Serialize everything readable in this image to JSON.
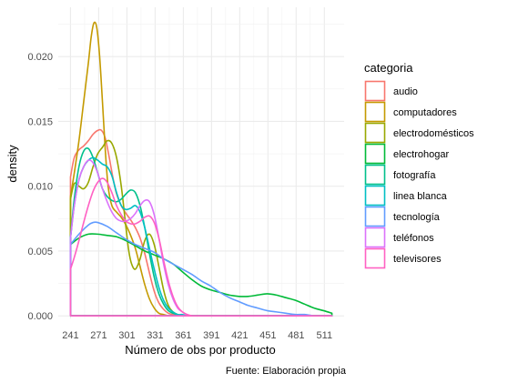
{
  "chart_data": {
    "type": "line",
    "subtype": "density",
    "xlabel": "Número de obs por producto",
    "ylabel": "density",
    "caption": "Fuente: Elaboración propia",
    "x_ticks": [
      241,
      271,
      301,
      331,
      361,
      391,
      421,
      451,
      481,
      511
    ],
    "y_ticks": [
      0.0,
      0.005,
      0.01,
      0.015,
      0.02
    ],
    "y_tick_labels": [
      "0.000",
      "0.005",
      "0.010",
      "0.015",
      "0.020"
    ],
    "xlim": [
      228,
      532
    ],
    "ylim": [
      -0.0002,
      0.0238
    ],
    "grid": true,
    "legend_title": "categoria",
    "legend_position": "right",
    "series": [
      {
        "name": "audio",
        "color": "#F8766D",
        "x": [
          241,
          245,
          250,
          255,
          260,
          265,
          270,
          274,
          278,
          282,
          286,
          290,
          295,
          300,
          305,
          310,
          315,
          320,
          325,
          330,
          335,
          340,
          345,
          350,
          355
        ],
        "y": [
          0.0107,
          0.0122,
          0.0128,
          0.0131,
          0.0135,
          0.014,
          0.0143,
          0.0143,
          0.0137,
          0.0123,
          0.0107,
          0.0094,
          0.0085,
          0.0079,
          0.0074,
          0.0068,
          0.006,
          0.0048,
          0.0033,
          0.0019,
          0.001,
          0.0005,
          0.0002,
          0.0001,
          0.0
        ]
      },
      {
        "name": "computadores",
        "color": "#C49A00",
        "x": [
          241,
          245,
          250,
          255,
          260,
          263,
          266,
          269,
          272,
          275,
          278,
          281,
          285,
          290,
          295,
          300,
          305,
          310,
          315,
          320,
          325,
          330,
          335,
          340,
          345
        ],
        "y": [
          0.0092,
          0.011,
          0.0135,
          0.0165,
          0.0195,
          0.0215,
          0.0226,
          0.0222,
          0.02,
          0.0165,
          0.0128,
          0.01,
          0.0085,
          0.008,
          0.0076,
          0.007,
          0.0062,
          0.0052,
          0.0038,
          0.0024,
          0.0013,
          0.0006,
          0.0002,
          0.0001,
          0.0
        ]
      },
      {
        "name": "electrodomésticos",
        "color": "#99A800",
        "x": [
          241,
          245,
          250,
          255,
          260,
          265,
          270,
          275,
          280,
          285,
          290,
          295,
          300,
          303,
          306,
          310,
          315,
          320,
          325,
          330,
          335,
          340,
          345,
          350,
          355,
          360
        ],
        "y": [
          0.009,
          0.0102,
          0.01,
          0.0098,
          0.0103,
          0.0115,
          0.0125,
          0.013,
          0.0135,
          0.0133,
          0.0122,
          0.01,
          0.0068,
          0.005,
          0.004,
          0.0036,
          0.0044,
          0.0058,
          0.0063,
          0.0055,
          0.0038,
          0.002,
          0.0008,
          0.0003,
          0.0001,
          0.0
        ]
      },
      {
        "name": "electrohogar",
        "color": "#00BA38",
        "x": [
          241,
          250,
          260,
          270,
          280,
          290,
          300,
          310,
          320,
          330,
          340,
          350,
          360,
          370,
          380,
          390,
          400,
          410,
          420,
          430,
          440,
          450,
          460,
          470,
          480,
          490,
          500,
          510,
          519
        ],
        "y": [
          0.0055,
          0.006,
          0.0063,
          0.0063,
          0.0062,
          0.0061,
          0.0058,
          0.0054,
          0.005,
          0.0047,
          0.0044,
          0.004,
          0.0034,
          0.0028,
          0.0023,
          0.002,
          0.0018,
          0.0016,
          0.0015,
          0.0015,
          0.0016,
          0.0017,
          0.0016,
          0.0014,
          0.0012,
          0.0009,
          0.0006,
          0.0004,
          0.0002
        ]
      },
      {
        "name": "fotografía",
        "color": "#00C08B",
        "x": [
          241,
          245,
          250,
          255,
          260,
          265,
          270,
          275,
          280,
          285,
          290,
          295,
          300,
          305,
          310,
          315,
          320,
          325,
          330,
          335,
          340,
          345,
          350,
          355,
          360
        ],
        "y": [
          0.006,
          0.009,
          0.0115,
          0.0127,
          0.0129,
          0.0122,
          0.011,
          0.0098,
          0.0092,
          0.0089,
          0.0088,
          0.009,
          0.0094,
          0.0097,
          0.0095,
          0.0085,
          0.0068,
          0.0048,
          0.003,
          0.0017,
          0.0009,
          0.0004,
          0.0002,
          0.0001,
          0.0
        ]
      },
      {
        "name": "linea blanca",
        "color": "#00BFC4",
        "x": [
          241,
          245,
          250,
          255,
          260,
          265,
          270,
          275,
          280,
          285,
          290,
          295,
          300,
          305,
          310,
          315,
          320,
          325,
          330,
          335,
          340,
          345,
          350,
          355,
          360,
          365
        ],
        "y": [
          0.006,
          0.0085,
          0.0105,
          0.0115,
          0.012,
          0.0122,
          0.012,
          0.0117,
          0.0115,
          0.0108,
          0.0095,
          0.0085,
          0.0082,
          0.0083,
          0.0085,
          0.008,
          0.0068,
          0.0052,
          0.0036,
          0.0022,
          0.0012,
          0.0006,
          0.0003,
          0.0001,
          0.0001,
          0.0
        ]
      },
      {
        "name": "tecnología",
        "color": "#619CFF",
        "x": [
          241,
          250,
          260,
          265,
          270,
          280,
          290,
          300,
          310,
          320,
          330,
          340,
          350,
          360,
          370,
          380,
          390,
          400,
          410,
          420,
          430,
          440,
          450,
          460,
          470,
          480,
          490,
          500,
          510,
          519
        ],
        "y": [
          0.0055,
          0.0063,
          0.007,
          0.0072,
          0.0072,
          0.0069,
          0.0064,
          0.0059,
          0.0055,
          0.0052,
          0.0049,
          0.0044,
          0.004,
          0.0036,
          0.0032,
          0.0027,
          0.0023,
          0.0018,
          0.0014,
          0.0011,
          0.0008,
          0.0006,
          0.0004,
          0.0003,
          0.0002,
          0.0001,
          0.0001,
          0.0,
          0.0,
          0.0
        ]
      },
      {
        "name": "teléfonos",
        "color": "#DB72FB",
        "x": [
          241,
          245,
          250,
          255,
          260,
          265,
          270,
          275,
          280,
          285,
          290,
          295,
          300,
          305,
          310,
          315,
          320,
          325,
          330,
          335,
          340,
          345,
          350,
          355,
          360,
          365,
          370,
          375
        ],
        "y": [
          0.006,
          0.0085,
          0.0105,
          0.0115,
          0.012,
          0.0118,
          0.011,
          0.0098,
          0.0088,
          0.008,
          0.0075,
          0.0073,
          0.0073,
          0.0075,
          0.0079,
          0.0085,
          0.0089,
          0.0088,
          0.0078,
          0.006,
          0.004,
          0.0024,
          0.0013,
          0.0006,
          0.0003,
          0.0001,
          0.0,
          0.0
        ]
      },
      {
        "name": "televisores",
        "color": "#FF61C3",
        "x": [
          241,
          245,
          250,
          255,
          260,
          265,
          270,
          275,
          280,
          285,
          290,
          295,
          300,
          305,
          310,
          315,
          320,
          325,
          330,
          335,
          340,
          345,
          350,
          355,
          360,
          365,
          370
        ],
        "y": [
          0.0036,
          0.0045,
          0.0058,
          0.0072,
          0.0085,
          0.0096,
          0.0103,
          0.0106,
          0.0103,
          0.0095,
          0.0085,
          0.0078,
          0.0073,
          0.0071,
          0.0071,
          0.0073,
          0.0076,
          0.0077,
          0.0072,
          0.006,
          0.0043,
          0.0027,
          0.0015,
          0.0007,
          0.0003,
          0.0001,
          0.0
        ]
      }
    ]
  }
}
